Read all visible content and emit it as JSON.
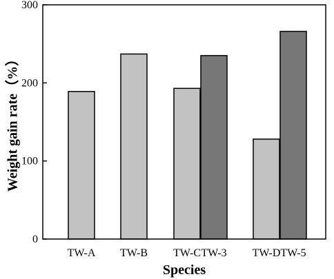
{
  "chart_data": {
    "type": "bar",
    "title": "",
    "xlabel": "Species",
    "ylabel": "Weight gain rate（%）",
    "ylim": [
      0,
      300
    ],
    "yticks": [
      0,
      100,
      200,
      300
    ],
    "bars": [
      {
        "label": "TW-A",
        "value": 189,
        "color": "#c2c2c2"
      },
      {
        "label": "TW-B",
        "value": 237,
        "color": "#c2c2c2"
      },
      {
        "label": "TW-C",
        "value": 193,
        "color": "#c2c2c2"
      },
      {
        "label": "TW-3",
        "value": 235,
        "color": "#777777"
      },
      {
        "label": "TW-D",
        "value": 128,
        "color": "#c2c2c2"
      },
      {
        "label": "TW-5",
        "value": 266,
        "color": "#777777"
      }
    ],
    "grid": false,
    "legend": "none"
  }
}
